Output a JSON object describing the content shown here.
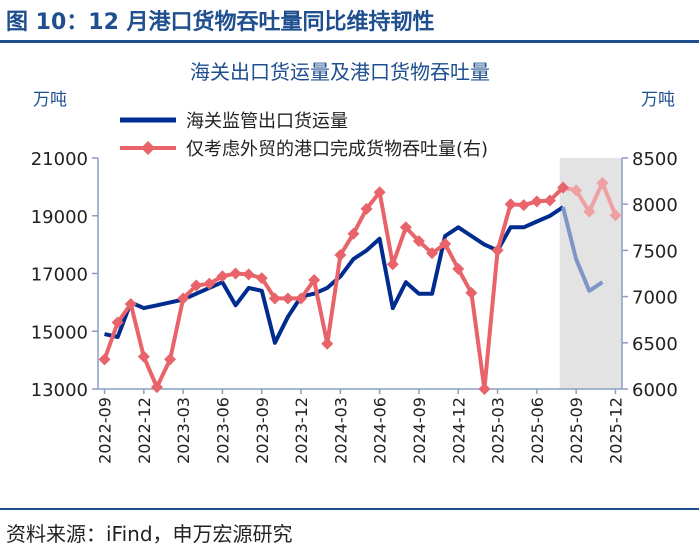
{
  "figure_title": "图 10：12 月港口货物吞吐量同比维持韧性",
  "source": "资料来源：iFind，申万宏源研究",
  "colors": {
    "title": "#1f4f8f",
    "series1": "#002b8f",
    "series2": "#e8636a",
    "shade": "#e3e3e3"
  },
  "chart_data": {
    "type": "line",
    "title": "海关出口货运量及港口货物吞吐量",
    "ylabel_left": "万吨",
    "ylabel_right": "万吨",
    "ylim_left": [
      13000,
      21000
    ],
    "ylim_right": [
      6000,
      8500
    ],
    "yticks_left": [
      "21000",
      "19000",
      "17000",
      "15000",
      "13000"
    ],
    "yticks_right": [
      "8500",
      "8000",
      "7500",
      "7000",
      "6500",
      "6000"
    ],
    "x_tick_labels": [
      "2022-09",
      "2022-12",
      "2023-03",
      "2023-06",
      "2023-09",
      "2023-12",
      "2024-03",
      "2024-06",
      "2024-09",
      "2024-12",
      "2025-03",
      "2025-06",
      "2025-09",
      "2025-12"
    ],
    "legend_position": "top-left",
    "shaded_region": [
      "2025-08",
      "2025-12"
    ],
    "grid": false,
    "series": [
      {
        "name": "海关监管出口货运量",
        "axis": "left",
        "x": [
          "2022-09",
          "2022-10",
          "2022-11",
          "2022-12",
          "2023-01",
          "2023-02",
          "2023-03",
          "2023-04",
          "2023-05",
          "2023-06",
          "2023-07",
          "2023-08",
          "2023-09",
          "2023-10",
          "2023-11",
          "2023-12",
          "2024-01",
          "2024-02",
          "2024-03",
          "2024-04",
          "2024-05",
          "2024-06",
          "2024-07",
          "2024-08",
          "2024-09",
          "2024-10",
          "2024-11",
          "2024-12",
          "2025-01",
          "2025-02",
          "2025-03",
          "2025-04",
          "2025-05",
          "2025-06",
          "2025-07",
          "2025-08",
          "2025-09",
          "2025-10",
          "2025-11",
          "2025-12"
        ],
        "values": [
          14900,
          14800,
          16000,
          15800,
          15900,
          16000,
          16100,
          16300,
          16500,
          16700,
          15900,
          16500,
          16400,
          14600,
          15500,
          16200,
          16300,
          16500,
          16900,
          17500,
          17800,
          18200,
          15800,
          16700,
          16300,
          16300,
          18300,
          18600,
          18300,
          18000,
          17800,
          18600,
          18600,
          18800,
          19000,
          19300,
          17500,
          16400,
          16700,
          null
        ]
      },
      {
        "name": "仅考虑外贸的港口完成货物吞吐量(右)",
        "axis": "right",
        "x": [
          "2022-09",
          "2022-10",
          "2022-11",
          "2022-12",
          "2023-01",
          "2023-02",
          "2023-03",
          "2023-04",
          "2023-05",
          "2023-06",
          "2023-07",
          "2023-08",
          "2023-09",
          "2023-10",
          "2023-11",
          "2023-12",
          "2024-01",
          "2024-02",
          "2024-03",
          "2024-04",
          "2024-05",
          "2024-06",
          "2024-07",
          "2024-08",
          "2024-09",
          "2024-10",
          "2024-11",
          "2024-12",
          "2025-01",
          "2025-02",
          "2025-03",
          "2025-04",
          "2025-05",
          "2025-06",
          "2025-07",
          "2025-08",
          "2025-09",
          "2025-10",
          "2025-11",
          "2025-12"
        ],
        "values": [
          6320,
          6720,
          6920,
          6350,
          6020,
          6320,
          6980,
          7120,
          7140,
          7220,
          7250,
          7240,
          7200,
          6980,
          6980,
          6980,
          7180,
          6490,
          7450,
          7680,
          7950,
          8130,
          7350,
          7750,
          7600,
          7470,
          7570,
          7300,
          7040,
          6000,
          7500,
          8000,
          7990,
          8030,
          8040,
          8180,
          8150,
          7920,
          8230,
          7880
        ]
      }
    ]
  }
}
